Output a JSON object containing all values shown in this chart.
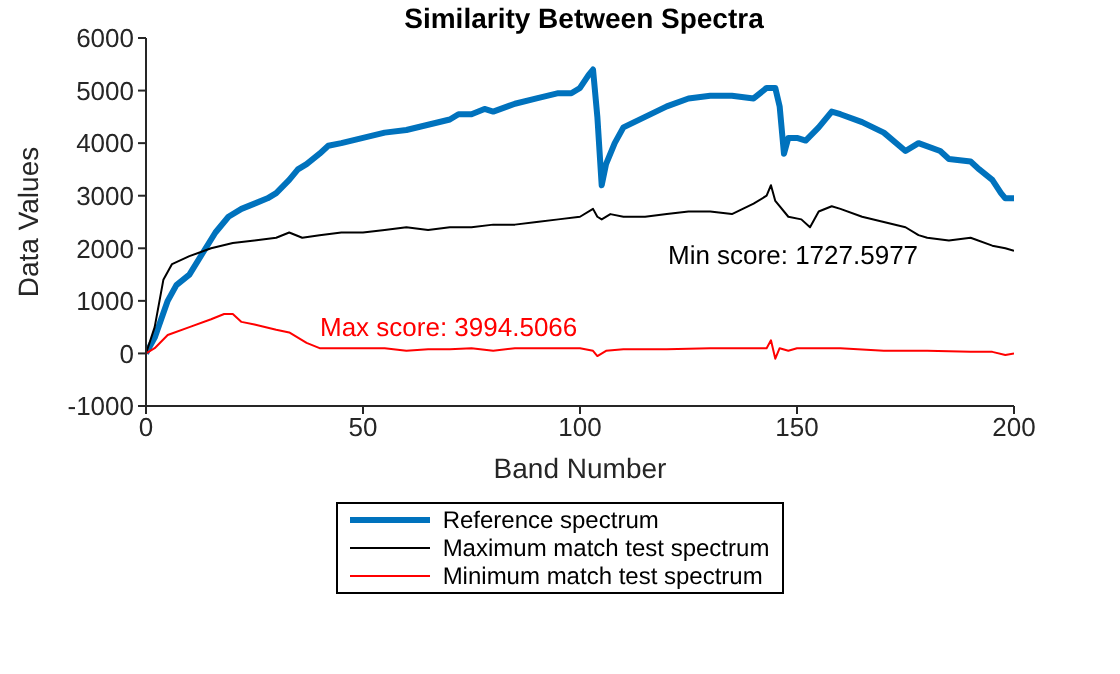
{
  "chart_data": {
    "type": "line",
    "title": "Similarity Between Spectra",
    "xlabel": "Band Number",
    "ylabel": "Data Values",
    "xlim": [
      0,
      200
    ],
    "xticks": [
      0,
      50,
      100,
      150,
      200
    ],
    "ylim": [
      -1000,
      6000
    ],
    "yticks": [
      -1000,
      0,
      1000,
      2000,
      3000,
      4000,
      5000,
      6000
    ],
    "legend": "bottom",
    "marker": "none",
    "line_style": "solid",
    "annotations": [
      "Max score: 3994.5066",
      "Min score: 1727.5977"
    ],
    "series": [
      {
        "name": "Reference spectrum",
        "color": "#0072bd",
        "x": [
          0,
          2,
          5,
          7,
          10,
          13,
          16,
          19,
          22,
          25,
          28,
          30,
          33,
          35,
          37,
          40,
          42,
          45,
          50,
          55,
          60,
          65,
          70,
          72,
          75,
          78,
          80,
          85,
          90,
          95,
          98,
          100,
          102,
          103,
          104,
          105,
          106,
          108,
          110,
          115,
          120,
          125,
          130,
          135,
          140,
          143,
          145,
          146,
          147,
          148,
          150,
          152,
          155,
          158,
          160,
          165,
          170,
          175,
          178,
          183,
          185,
          190,
          192,
          195,
          197,
          198,
          200
        ],
        "values": [
          0,
          300,
          1000,
          1300,
          1500,
          1900,
          2300,
          2600,
          2750,
          2850,
          2950,
          3050,
          3300,
          3500,
          3600,
          3800,
          3950,
          4000,
          4100,
          4200,
          4250,
          4350,
          4450,
          4550,
          4550,
          4650,
          4600,
          4750,
          4850,
          4950,
          4950,
          5050,
          5300,
          5400,
          4500,
          3200,
          3600,
          4000,
          4300,
          4500,
          4700,
          4850,
          4900,
          4900,
          4850,
          5050,
          5050,
          4700,
          3800,
          4100,
          4100,
          4050,
          4300,
          4600,
          4550,
          4400,
          4200,
          3850,
          4000,
          3850,
          3700,
          3650,
          3500,
          3300,
          3050,
          2950,
          2950
        ]
      },
      {
        "name": "Maximum match test spectrum",
        "color": "#000000",
        "x": [
          0,
          2,
          4,
          6,
          10,
          15,
          20,
          25,
          30,
          33,
          36,
          40,
          45,
          50,
          55,
          60,
          65,
          70,
          75,
          80,
          85,
          90,
          95,
          100,
          103,
          104,
          105,
          107,
          110,
          115,
          120,
          125,
          130,
          135,
          140,
          143,
          144,
          145,
          148,
          151,
          153,
          155,
          158,
          160,
          165,
          170,
          175,
          178,
          180,
          185,
          190,
          195,
          198,
          200
        ],
        "values": [
          0,
          500,
          1400,
          1700,
          1850,
          2000,
          2100,
          2150,
          2200,
          2300,
          2200,
          2250,
          2300,
          2300,
          2350,
          2400,
          2350,
          2400,
          2400,
          2450,
          2450,
          2500,
          2550,
          2600,
          2750,
          2600,
          2550,
          2650,
          2600,
          2600,
          2650,
          2700,
          2700,
          2650,
          2850,
          3000,
          3200,
          2900,
          2600,
          2550,
          2400,
          2700,
          2800,
          2750,
          2600,
          2500,
          2400,
          2250,
          2200,
          2150,
          2200,
          2050,
          2000,
          1950
        ]
      },
      {
        "name": "Minimum match test spectrum",
        "color": "#ff0000",
        "x": [
          0,
          2,
          5,
          10,
          15,
          18,
          20,
          22,
          25,
          30,
          33,
          37,
          40,
          45,
          50,
          55,
          60,
          65,
          70,
          75,
          80,
          85,
          90,
          100,
          103,
          104,
          106,
          110,
          120,
          130,
          140,
          143,
          144,
          145,
          146,
          148,
          150,
          160,
          170,
          180,
          190,
          195,
          198,
          200
        ],
        "values": [
          0,
          100,
          350,
          500,
          650,
          750,
          750,
          600,
          550,
          450,
          400,
          200,
          100,
          100,
          100,
          100,
          50,
          80,
          80,
          100,
          50,
          100,
          100,
          100,
          50,
          -50,
          50,
          80,
          80,
          100,
          100,
          100,
          250,
          -100,
          100,
          50,
          100,
          100,
          50,
          50,
          30,
          30,
          -30,
          0
        ]
      }
    ]
  }
}
